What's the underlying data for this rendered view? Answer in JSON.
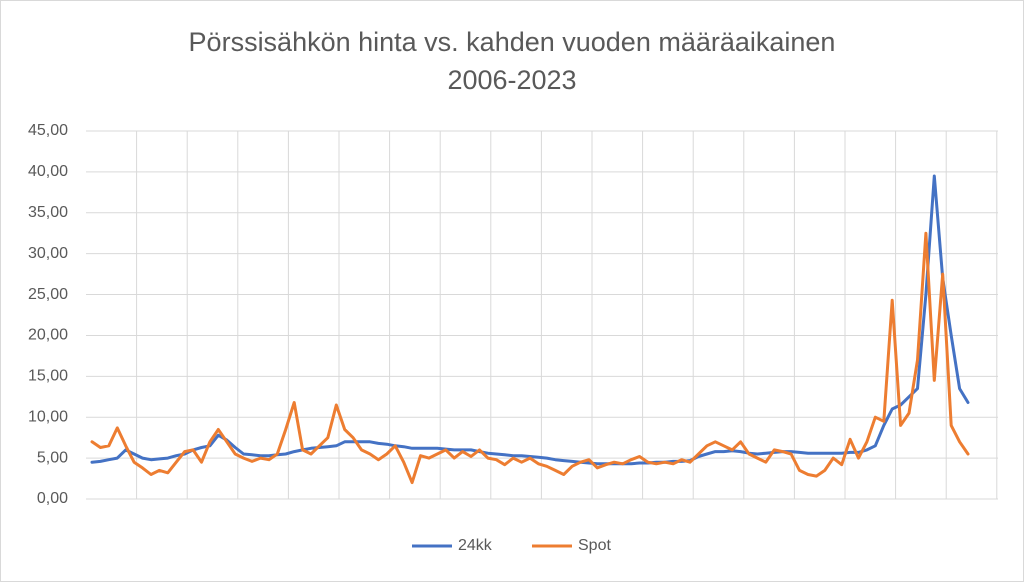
{
  "chart_data": {
    "type": "line",
    "title": "Pörssisähkön hinta vs. kahden vuoden määräaikainen",
    "subtitle": "2006-2023",
    "categories": [
      null,
      null,
      null,
      null,
      null,
      null,
      null,
      null,
      null,
      null,
      null,
      null,
      null,
      null,
      null,
      null,
      null,
      null,
      null,
      null,
      null,
      null,
      null,
      null,
      null,
      null,
      null,
      null,
      null,
      null,
      null,
      null,
      null,
      null,
      null,
      null,
      null,
      null,
      null,
      null,
      null,
      null,
      null,
      null,
      null,
      null,
      null,
      null,
      null,
      null,
      null,
      null,
      null,
      null,
      null,
      null,
      null,
      null,
      null,
      null,
      null,
      null,
      null,
      null,
      null,
      null,
      null,
      null,
      null,
      null,
      null,
      null,
      null,
      null,
      null,
      null,
      null,
      null,
      null,
      null,
      null,
      null,
      null,
      null,
      null,
      null,
      null,
      null,
      null,
      null,
      null,
      null,
      null,
      null,
      null,
      null,
      null,
      null,
      null,
      null,
      null,
      null,
      null,
      null,
      null
    ],
    "series": [
      {
        "name": "24kk",
        "color": "#4472c4",
        "values": [
          4.5,
          4.6,
          4.8,
          5.0,
          6.0,
          5.5,
          5.0,
          4.8,
          4.9,
          5.0,
          5.3,
          5.5,
          6.0,
          6.3,
          6.5,
          7.8,
          7.2,
          6.3,
          5.5,
          5.4,
          5.3,
          5.3,
          5.4,
          5.5,
          5.8,
          6.0,
          6.2,
          6.3,
          6.4,
          6.5,
          7.0,
          7.0,
          7.0,
          7.0,
          6.8,
          6.7,
          6.5,
          6.4,
          6.2,
          6.2,
          6.2,
          6.2,
          6.1,
          6.0,
          6.0,
          6.0,
          5.8,
          5.6,
          5.5,
          5.4,
          5.3,
          5.3,
          5.2,
          5.1,
          5.0,
          4.8,
          4.7,
          4.6,
          4.5,
          4.4,
          4.3,
          4.3,
          4.3,
          4.3,
          4.3,
          4.4,
          4.4,
          4.5,
          4.5,
          4.6,
          4.6,
          4.7,
          5.2,
          5.5,
          5.8,
          5.8,
          5.9,
          5.8,
          5.6,
          5.5,
          5.6,
          5.7,
          5.8,
          5.8,
          5.7,
          5.6,
          5.6,
          5.6,
          5.6,
          5.6,
          5.7,
          5.7,
          6.0,
          6.5,
          9.0,
          11.0,
          11.5,
          12.5,
          13.5,
          25.0,
          39.5,
          27.0,
          20.0,
          13.5,
          11.8
        ]
      },
      {
        "name": "Spot",
        "color": "#ed7d31",
        "values": [
          7.0,
          6.3,
          6.5,
          8.7,
          6.5,
          4.5,
          3.8,
          3.0,
          3.5,
          3.2,
          4.5,
          5.8,
          6.0,
          4.5,
          7.0,
          8.5,
          7.0,
          5.5,
          5.0,
          4.6,
          5.0,
          4.8,
          5.5,
          8.5,
          11.8,
          6.0,
          5.5,
          6.5,
          7.5,
          11.5,
          8.5,
          7.5,
          6.0,
          5.5,
          4.8,
          5.5,
          6.5,
          4.5,
          2.0,
          5.3,
          5.0,
          5.5,
          6.0,
          5.0,
          5.8,
          5.2,
          6.0,
          5.0,
          4.8,
          4.2,
          5.0,
          4.5,
          5.0,
          4.3,
          4.0,
          3.5,
          3.0,
          4.0,
          4.5,
          4.8,
          3.8,
          4.2,
          4.5,
          4.3,
          4.8,
          5.2,
          4.5,
          4.3,
          4.5,
          4.3,
          4.8,
          4.5,
          5.5,
          6.5,
          7.0,
          6.5,
          6.0,
          7.0,
          5.5,
          5.0,
          4.5,
          6.0,
          5.8,
          5.5,
          3.5,
          3.0,
          2.8,
          3.5,
          5.0,
          4.2,
          7.3,
          5.0,
          7.0,
          10.0,
          9.5,
          24.3,
          9.0,
          10.5,
          17.0,
          32.5,
          14.5,
          27.5,
          9.0,
          7.0,
          5.5
        ]
      }
    ],
    "ylim": [
      0,
      45
    ],
    "yticks": [
      {
        "value": 0,
        "label": "0,00"
      },
      {
        "value": 5,
        "label": "5,00"
      },
      {
        "value": 10,
        "label": "10,00"
      },
      {
        "value": 15,
        "label": "15,00"
      },
      {
        "value": 20,
        "label": "20,00"
      },
      {
        "value": 25,
        "label": "25,00"
      },
      {
        "value": 30,
        "label": "30,00"
      },
      {
        "value": 35,
        "label": "35,00"
      },
      {
        "value": 40,
        "label": "40,00"
      },
      {
        "value": 45,
        "label": "45,00"
      }
    ],
    "grid": true,
    "legend": "bottom"
  }
}
